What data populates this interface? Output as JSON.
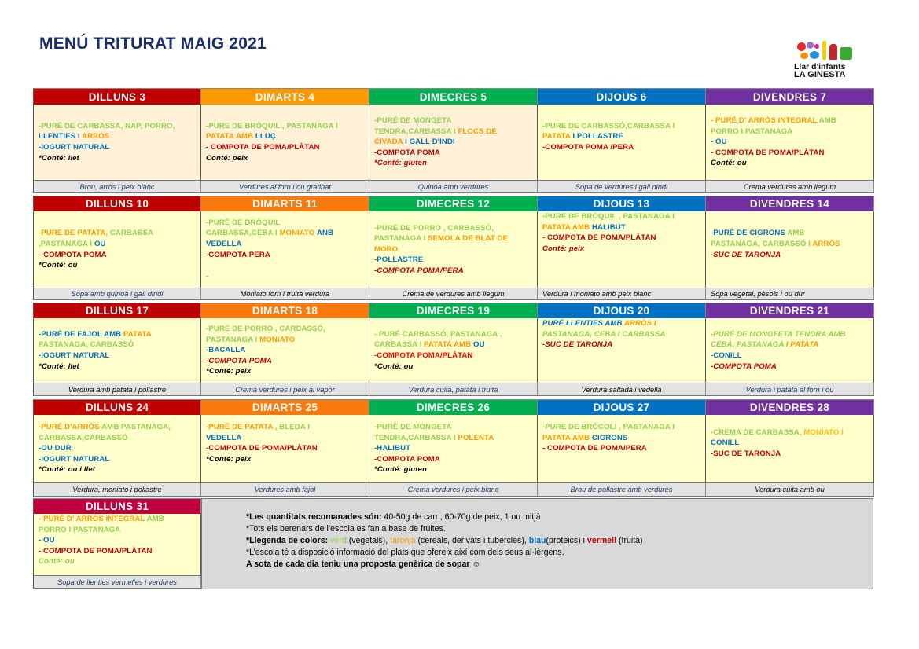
{
  "title": "MENÚ TRITURAT MAIG 2021",
  "logo": {
    "line1": "Llar d'infants",
    "line2": "LA GINESTA"
  },
  "colors": {
    "g": "#92d050",
    "o": "#ff9900",
    "y": "#ffc000",
    "b": "#0070c0",
    "r": "#c00000",
    "R": "#ff0000",
    "k": "#000000",
    "navy": "#1f3864",
    "peach": "#fff1d6",
    "yellow": "#ffffcc"
  },
  "weeks": [
    {
      "days": [
        {
          "header": "DILLUNS 3",
          "hcolor": "#c00000",
          "bg": "peach",
          "lines": [
            [
              [
                "-PURÉ DE CARBASSA, NAP, PORRO,",
                "g"
              ]
            ],
            [
              [
                "LLENTIES I ",
                "b"
              ],
              [
                "ARRÒS",
                "o"
              ]
            ],
            [
              [
                "-IOGURT NATURAL",
                "b"
              ]
            ],
            [
              [
                "*Conté: llet",
                "k",
                "i"
              ]
            ]
          ],
          "dinner": "Brou, arròs i peix blanc",
          "dcolor": "navy"
        },
        {
          "header": "DIMARTS 4",
          "hcolor": "#ff9900",
          "bg": "peach",
          "lines": [
            [
              [
                "-PURE  DE BRÒQUIL , PASTANAGA I",
                "g"
              ]
            ],
            [
              [
                "PATATA AMB ",
                "o"
              ],
              [
                "LLUÇ",
                "b"
              ]
            ],
            [
              [
                "- COMPOTA DE POMA/PLÀTAN",
                "r"
              ]
            ],
            [
              [
                "Conté: peix",
                "k",
                "i"
              ]
            ]
          ],
          "dinner": "Verdures al forn i ou gratinat",
          "dcolor": "navy"
        },
        {
          "header": "DIMECRES 5",
          "hcolor": "#00b050",
          "bg": "peach",
          "lines": [
            [
              [
                "-PURÉ DE MONGETA",
                "g"
              ]
            ],
            [
              [
                "TENDRA,CARBASSA I ",
                "g"
              ],
              [
                "FLOCS DE",
                "o"
              ]
            ],
            [
              [
                "CIVADA ",
                "o"
              ],
              [
                "I GALL D'INDI",
                "b"
              ]
            ],
            [
              [
                "-COMPOTA POMA",
                "r"
              ]
            ],
            [
              [
                " *Conté: gluten",
                "r",
                "i"
              ],
              [
                "-",
                "g"
              ]
            ]
          ],
          "dinner": "Quinoa amb verdures",
          "dcolor": "navy"
        },
        {
          "header": "DIJOUS  6",
          "hcolor": "#0070c0",
          "bg": "yellow",
          "lines": [
            [
              [
                "-PURE DE CARBASSÓ,CARBASSA I",
                "g"
              ]
            ],
            [
              [
                "PATATA ",
                "o"
              ],
              [
                "I POLLASTRE",
                "b"
              ]
            ],
            [
              [
                "-COMPOTA POMA /PERA",
                "r"
              ]
            ],
            [
              [
                ""
              ]
            ]
          ],
          "dinner": "Sopa de verdures i gall dindi",
          "dcolor": "navy"
        },
        {
          "header": "DIVENDRES  7",
          "hcolor": "#7030a0",
          "bg": "yellow",
          "lines": [
            [
              [
                "-  PURÉ D' ARRÒS INTEGRAL ",
                "o"
              ],
              [
                "AMB",
                "g"
              ]
            ],
            [
              [
                "PORRO I PASTANAGA",
                "g"
              ]
            ],
            [
              [
                "- OU",
                "b"
              ]
            ],
            [
              [
                "- COMPOTA DE POMA/PLÀTAN",
                "r"
              ]
            ],
            [
              [
                "Conté: ou",
                "k",
                "i"
              ]
            ]
          ],
          "dinner": "Crema verdures amb llegum",
          "dcolor": "k"
        }
      ]
    },
    {
      "days": [
        {
          "header": "DILLUNS  10",
          "hcolor": "#c00000",
          "bg": "yellow",
          "lines": [
            [
              [
                "-PURE DE PATATA, ",
                "o"
              ],
              [
                "CARBASSA",
                "g"
              ]
            ],
            [
              [
                ",PASTANAGA I ",
                "g"
              ],
              [
                "OU",
                "b"
              ]
            ],
            [
              [
                "- COMPOTA POMA",
                "r"
              ]
            ],
            [
              [
                " *Conté: ou",
                "k",
                "i"
              ]
            ]
          ],
          "dinner": "Sopa amb quinoa i gall dindi",
          "dcolor": "navy"
        },
        {
          "header": "DIMARTS  11",
          "hcolor": "#fb7a0e",
          "bg": "yellow",
          "lines": [
            [
              [
                "-PURÉ DE BRÒQUIL",
                "g"
              ]
            ],
            [
              [
                "CARBASSA,CEBA I ",
                "g"
              ],
              [
                "MONIATO ",
                "o"
              ],
              [
                "ANB",
                "b"
              ]
            ],
            [
              [
                "VEDELLA",
                "b"
              ]
            ],
            [
              [
                "-COMPOTA PERA",
                "r"
              ]
            ],
            [
              [
                ""
              ]
            ],
            [
              [
                "-",
                "g"
              ]
            ]
          ],
          "dinner": "Moniato  forn i truita verdura",
          "dcolor": "k"
        },
        {
          "header": "DIMECRES 12",
          "hcolor": "#00b050",
          "bg": "yellow",
          "lines": [
            [
              [
                "-PURÉ DE PORRO , CARBASSÓ,",
                "g"
              ]
            ],
            [
              [
                "PASTANAGA I ",
                "g"
              ],
              [
                "SEMOLA DE BLAT DE",
                "o"
              ]
            ],
            [
              [
                "MORO",
                "o"
              ]
            ],
            [
              [
                "-POLLASTRE",
                "b"
              ]
            ],
            [
              [
                "-COMPOTA POMA/PERA",
                "r",
                "i"
              ]
            ]
          ],
          "dinner": "Crema de verdures amb llegum",
          "dcolor": "k"
        },
        {
          "header": "DIJOUS 13",
          "hcolor": "#0070c0",
          "bg": "yellow",
          "lines": [
            [
              [
                "-PURE  DE BRÒQUIL , PASTANAGA I",
                "g"
              ]
            ],
            [
              [
                "PATATA AMB ",
                "o"
              ],
              [
                "HALIBUT",
                "b"
              ]
            ],
            [
              [
                "- COMPOTA DE POMA/PLÀTAN",
                "r"
              ]
            ],
            [
              [
                "Conté: peix",
                "r",
                "i"
              ]
            ]
          ],
          "dinner": "Verdura i moniato amb peix blanc",
          "dcolor": "k"
        },
        {
          "header": "DIVENDRES 14",
          "hcolor": "#7030a0",
          "bg": "yellow",
          "lines": [
            [
              [
                "-PURÉ DE CIGRONS ",
                "b"
              ],
              [
                "AMB",
                "g"
              ]
            ],
            [
              [
                "PASTANAGA, CARBASSÓ I ",
                "g"
              ],
              [
                "ARRÒS",
                "o"
              ]
            ],
            [
              [
                "-SUC DE TARONJA",
                "r",
                "i"
              ]
            ],
            [
              [
                ""
              ]
            ]
          ],
          "dinner": "Sopa vegetal, pèsols i ou dur",
          "dcolor": "k"
        }
      ]
    },
    {
      "days": [
        {
          "header": "DILLUNS  17",
          "hcolor": "#c00000",
          "bg": "yellow",
          "lines": [
            [
              [
                "-PURÉ DE FAJOL AMB ",
                "b"
              ],
              [
                "PATATA",
                "o"
              ]
            ],
            [
              [
                "PASTANAGA, CARBASSÓ",
                "g"
              ]
            ],
            [
              [
                "-IOGURT NATURAL",
                "b"
              ]
            ],
            [
              [
                " *Conté: llet",
                "k",
                "i"
              ]
            ]
          ],
          "dinner": "Verdura amb patata i pollastre",
          "dcolor": "k"
        },
        {
          "header": "DIMARTS 18",
          "hcolor": "#fb7a0e",
          "bg": "yellow",
          "lines": [
            [
              [
                "-PURÉ DE PORRO , CARBASSÓ,",
                "g"
              ]
            ],
            [
              [
                "PASTANAGA I ",
                "g"
              ],
              [
                "MONIATO",
                "o"
              ]
            ],
            [
              [
                "-BACALLA",
                "b"
              ]
            ],
            [
              [
                "-COMPOTA POMA",
                "r",
                "i"
              ]
            ],
            [
              [
                "*Conté: peix",
                "k",
                "i"
              ]
            ]
          ],
          "dinner": "Crema verdures i peix al vapor",
          "dcolor": "navy"
        },
        {
          "header": "DIMECRES 19",
          "hcolor": "#00b050",
          "bg": "yellow",
          "lines": [
            [
              [
                "- PURÉ CARBASSÓ, PASTANAGA ,",
                "g"
              ]
            ],
            [
              [
                "CARBASSA I ",
                "g"
              ],
              [
                "PATATA AMB ",
                "o"
              ],
              [
                "OU",
                "b"
              ]
            ],
            [
              [
                "-COMPOTA POMA/PLÀTAN",
                "R"
              ]
            ],
            [
              [
                " *Conté:  ou",
                "k",
                "i"
              ]
            ]
          ],
          "dinner": "Verdura cuita, patata i truita",
          "dcolor": "navy"
        },
        {
          "header": "DIJOUS 20",
          "hcolor": "#0070c0",
          "bg": "yellow",
          "lines": [
            [
              [
                "PURÉ LLENTIES AMB ",
                "b",
                "i"
              ],
              [
                "ARRÒS I",
                "o",
                "i"
              ]
            ],
            [
              [
                "PASTANAGA, CEBA I CARBASSA",
                "g",
                "i"
              ]
            ],
            [
              [
                "-SUC DE TARONJA",
                "r",
                "i"
              ]
            ]
          ],
          "dinner": "Verdura saltada i vedella",
          "dcolor": "k"
        },
        {
          "header": "DIVENDRES 21",
          "hcolor": "#7030a0",
          "bg": "yellow",
          "lines": [
            [
              [
                "-PURÉ DE MONGFETA TENDRA AMB",
                "g",
                "i"
              ]
            ],
            [
              [
                "CEBA, PASTANAGA ",
                "g",
                "i"
              ],
              [
                "I  PATATA",
                "o",
                "i"
              ]
            ],
            [
              [
                "-CONILL",
                "b"
              ]
            ],
            [
              [
                "-COMPOTA POMA",
                "r",
                "i"
              ]
            ]
          ],
          "dinner": "Verdura i patata al forn i ou",
          "dcolor": "navy"
        }
      ]
    },
    {
      "days": [
        {
          "header": "DILLUNS  24",
          "hcolor": "#c00000",
          "bg": "yellow",
          "lines": [
            [
              [
                "-PURÉ D'ARRÒS ",
                "o"
              ],
              [
                "AMB PASTANAGA,",
                "g"
              ]
            ],
            [
              [
                "CARBASSA,CARBASSÓ",
                "g"
              ]
            ],
            [
              [
                "-OU DUR",
                "b"
              ]
            ],
            [
              [
                "-IOGURT NATURAL",
                "b"
              ]
            ],
            [
              [
                " *Conté: ou  i llet",
                "k",
                "i"
              ]
            ]
          ],
          "dinner": "Verdura, moniato  i pollastre",
          "dcolor": "k"
        },
        {
          "header": "DIMARTS 25",
          "hcolor": "#fb7a0e",
          "bg": "yellow",
          "lines": [
            [
              [
                "-PURÉ DE PATATA , ",
                "o"
              ],
              [
                "BLEDA I",
                "g"
              ]
            ],
            [
              [
                "VEDELLA",
                "b"
              ]
            ],
            [
              [
                "-COMPOTA DE POMA/PLÀTAN",
                "r"
              ]
            ],
            [
              [
                " *Conté: peix",
                "k",
                "i"
              ]
            ],
            [
              [
                ""
              ]
            ]
          ],
          "dinner": "Verdures amb fajol",
          "dcolor": "navy"
        },
        {
          "header": "DIMECRES  26",
          "hcolor": "#00b050",
          "bg": "yellow",
          "lines": [
            [
              [
                "-PURÉ DE MONGETA",
                "g"
              ]
            ],
            [
              [
                "TENDRA,CARBASSA I ",
                "g"
              ],
              [
                "POLENTA",
                "o"
              ]
            ],
            [
              [
                "-HALIBUT",
                "b"
              ]
            ],
            [
              [
                "-COMPOTA POMA",
                "r"
              ]
            ],
            [
              [
                " *Conté: gluten",
                "k",
                "i"
              ]
            ]
          ],
          "dinner": "Crema verdures  i peix blanc",
          "dcolor": "navy"
        },
        {
          "header": "DIJOUS  27",
          "hcolor": "#0070c0",
          "bg": "yellow",
          "lines": [
            [
              [
                "-PURE  DE BRÒCOLI , PASTANAGA I",
                "g"
              ]
            ],
            [
              [
                "PATATA AMB ",
                "o"
              ],
              [
                "CIGRONS",
                "b"
              ]
            ],
            [
              [
                "- COMPOTA DE POMA/PERA",
                "r"
              ]
            ],
            [
              [
                ""
              ]
            ],
            [
              [
                ""
              ]
            ]
          ],
          "dinner": "Brou de pollastre amb verdures",
          "dcolor": "navy"
        },
        {
          "header": "DIVENDRES  28",
          "hcolor": "#7030a0",
          "bg": "yellow",
          "lines": [
            [
              [
                "-CREMA DE CARBASSA, ",
                "g"
              ],
              [
                "MONIATO I",
                "y"
              ]
            ],
            [
              [
                "CONILL",
                "b"
              ]
            ],
            [
              [
                "-SUC DE TARONJA",
                "r"
              ]
            ],
            [
              [
                ""
              ]
            ]
          ],
          "dinner": "Verdura cuita amb  ou",
          "dcolor": "k"
        }
      ]
    },
    {
      "days": [
        {
          "header": "DILLUNS  31",
          "hcolor": "#c0003c",
          "bg": "yellow",
          "lines": [
            [
              [
                "-  PURÉ D' ARRÒS INTEGRAL ",
                "o"
              ],
              [
                "AMB",
                "g"
              ]
            ],
            [
              [
                "PORRO I PASTANAGA",
                "g"
              ]
            ],
            [
              [
                "- OU",
                "b"
              ]
            ],
            [
              [
                "- COMPOTA DE POMA/PLÀTAN",
                "r"
              ]
            ],
            [
              [
                "Conté: ou",
                "g",
                "i"
              ]
            ]
          ],
          "dinner": "Sopa de llenties vermelles i verdures",
          "dcolor": "navy"
        }
      ]
    }
  ],
  "notes": [
    [
      [
        "*Les quantitats recomanades són: ",
        "k",
        "b"
      ],
      [
        "40-50g de carn, 60-70g de peix, 1 ou mitjà",
        "k"
      ]
    ],
    [
      [
        "*Tots els berenars de l’escola es fan a base de fruites.",
        "k"
      ]
    ],
    [
      [
        "*Llegenda de colors: ",
        "k",
        "b"
      ],
      [
        "verd",
        "g"
      ],
      [
        " (vegetals), ",
        "k"
      ],
      [
        "taronja",
        "o"
      ],
      [
        " (cereals, derivats i tubercles), ",
        "k"
      ],
      [
        "blau",
        "b",
        "b"
      ],
      [
        "(proteics) i ",
        "k"
      ],
      [
        "vermell",
        "r",
        "b"
      ],
      [
        " (fruita)",
        "k"
      ]
    ],
    [
      [
        "*L’escola té a disposició informació del plats que ofereix així com dels seus al·lèrgens.",
        "k"
      ]
    ],
    [
      [
        "A sota de cada dia teniu una proposta genèrica de sopar ☺",
        "k",
        "b"
      ]
    ]
  ]
}
